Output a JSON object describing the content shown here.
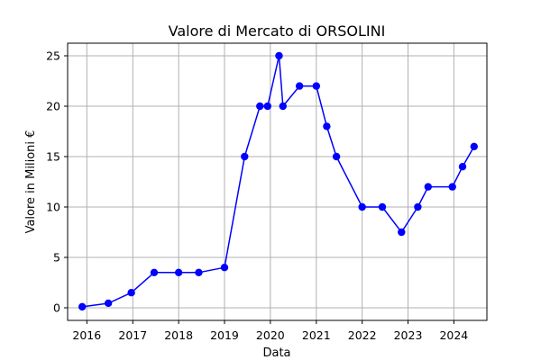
{
  "chart_data": {
    "type": "line",
    "title": "Valore di Mercato di ORSOLINI",
    "xlabel": "Data",
    "ylabel": "Valore in Milioni €",
    "xlim": [
      "2015-08-01",
      "2024-09-20"
    ],
    "ylim": [
      -1.25,
      26.25
    ],
    "x_ticks": [
      "2016",
      "2017",
      "2018",
      "2019",
      "2020",
      "2021",
      "2022",
      "2023",
      "2024"
    ],
    "y_ticks": [
      "0",
      "5",
      "10",
      "15",
      "20",
      "25"
    ],
    "grid": true,
    "series": [
      {
        "color": "#0000ff",
        "marker": "circle",
        "x": [
          "2015-11-25",
          "2016-06-20",
          "2016-12-20",
          "2017-06-20",
          "2018-01-01",
          "2018-06-10",
          "2019-01-01",
          "2019-06-10",
          "2019-10-10",
          "2019-12-10",
          "2020-03-10",
          "2020-04-10",
          "2020-08-20",
          "2021-01-01",
          "2021-03-25",
          "2021-06-10",
          "2022-01-01",
          "2022-06-10",
          "2022-11-10",
          "2023-03-20",
          "2023-06-10",
          "2023-12-20",
          "2024-03-10",
          "2024-06-10"
        ],
        "y": [
          0.1,
          0.45,
          1.5,
          3.5,
          3.5,
          3.5,
          4,
          15,
          20,
          20,
          25,
          20,
          22,
          22,
          18,
          15,
          10,
          10,
          7.5,
          10,
          12,
          12,
          14,
          16
        ]
      }
    ]
  }
}
